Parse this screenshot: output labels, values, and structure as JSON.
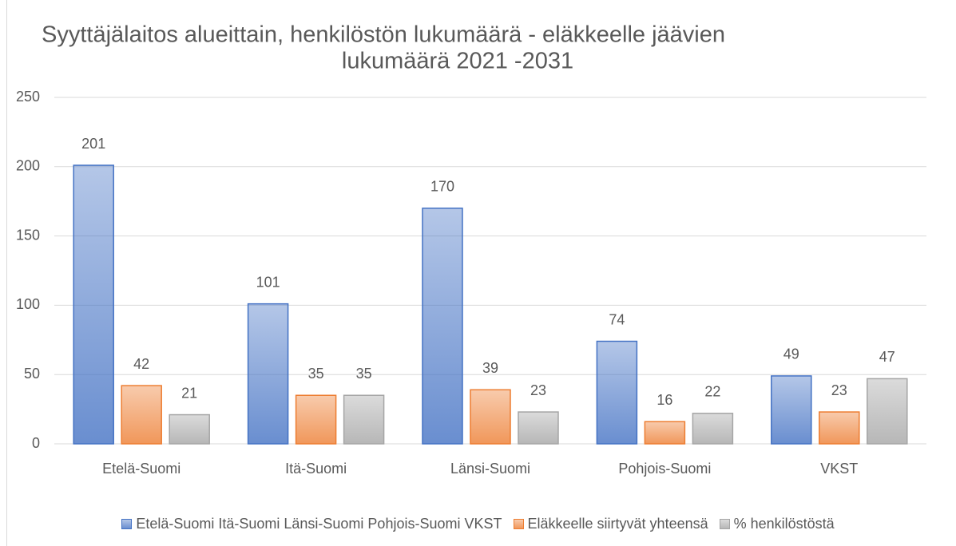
{
  "chart_data": {
    "type": "bar",
    "title": [
      "Syyttäjälaitos alueittain,  henkilöstön lukumäärä - eläkkeelle jäävien",
      "lukumäärä 2021 -2031"
    ],
    "categories": [
      "Etelä-Suomi",
      "Itä-Suomi",
      "Länsi-Suomi",
      "Pohjois-Suomi",
      "VKST"
    ],
    "series": [
      {
        "name": "Etelä-Suomi Itä-Suomi Länsi-Suomi Pohjois-Suomi VKST",
        "color": "#4472c4",
        "values": [
          201,
          101,
          170,
          74,
          49
        ]
      },
      {
        "name": "Eläkkeelle siirtyvät yhteensä",
        "color": "#ed7d31",
        "values": [
          42,
          35,
          39,
          16,
          23
        ]
      },
      {
        "name": "% henkilöstöstä",
        "color": "#a5a5a5",
        "values": [
          21,
          35,
          23,
          22,
          47
        ]
      }
    ],
    "ylim": [
      0,
      250
    ],
    "yticks": [
      0,
      50,
      100,
      150,
      200,
      250
    ],
    "grid": true,
    "legend": "bottom"
  }
}
